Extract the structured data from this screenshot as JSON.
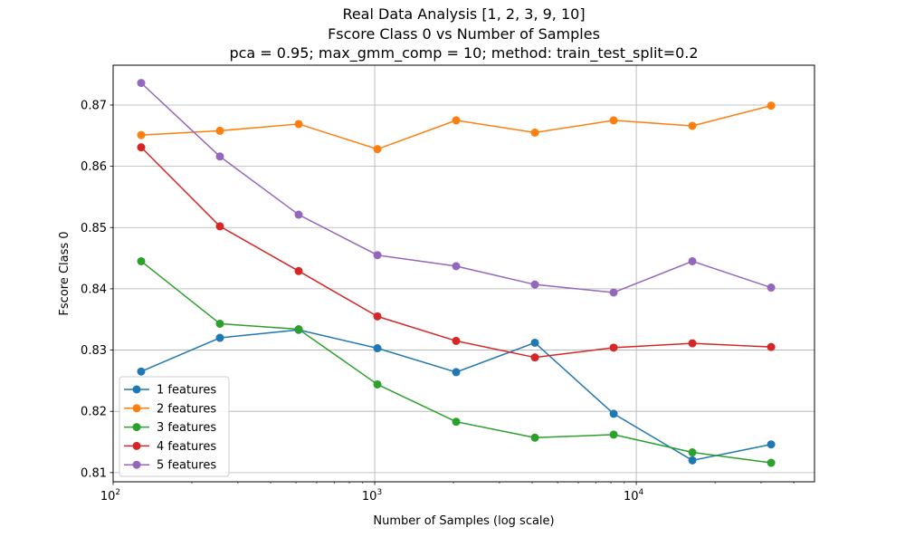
{
  "chart_data": {
    "type": "line",
    "title": [
      "Real Data Analysis [1, 2, 3, 9, 10]",
      "Fscore Class 0 vs Number of Samples",
      "pca = 0.95; max_gmm_comp = 10; method: train_test_split=0.2"
    ],
    "xlabel": "Number of Samples (log scale)",
    "ylabel": "Fscore Class 0",
    "xscale": "log",
    "xlim": [
      100,
      48000
    ],
    "ylim": [
      0.8085,
      0.8765
    ],
    "x_ticks": [
      {
        "value": 100,
        "base": "10",
        "exp": "2"
      },
      {
        "value": 1000,
        "base": "10",
        "exp": "3"
      },
      {
        "value": 10000,
        "base": "10",
        "exp": "4"
      }
    ],
    "y_ticks": [
      {
        "value": 0.81,
        "label": "0.81"
      },
      {
        "value": 0.82,
        "label": "0.82"
      },
      {
        "value": 0.83,
        "label": "0.83"
      },
      {
        "value": 0.84,
        "label": "0.84"
      },
      {
        "value": 0.85,
        "label": "0.85"
      },
      {
        "value": 0.86,
        "label": "0.86"
      },
      {
        "value": 0.87,
        "label": "0.87"
      }
    ],
    "grid": true,
    "legend_position": "lower-left",
    "x": [
      128,
      256,
      512,
      1024,
      2048,
      4096,
      8192,
      16384,
      32768
    ],
    "series": [
      {
        "name": "1 features",
        "color": "#1f77b4",
        "values": [
          0.8265,
          0.832,
          0.8333,
          0.8303,
          0.8264,
          0.8312,
          0.8196,
          0.812,
          0.8146
        ]
      },
      {
        "name": "2 features",
        "color": "#ff7f0e",
        "values": [
          0.8651,
          0.8658,
          0.8669,
          0.8628,
          0.8675,
          0.8655,
          0.8675,
          0.8666,
          0.8699
        ]
      },
      {
        "name": "3 features",
        "color": "#2ca02c",
        "values": [
          0.8445,
          0.8343,
          0.8334,
          0.8244,
          0.8183,
          0.8157,
          0.8162,
          0.8133,
          0.8116
        ]
      },
      {
        "name": "4 features",
        "color": "#d62728",
        "values": [
          0.8631,
          0.8502,
          0.8429,
          0.8355,
          0.8315,
          0.8288,
          0.8304,
          0.8311,
          0.8305
        ]
      },
      {
        "name": "5 features",
        "color": "#9467bd",
        "values": [
          0.8736,
          0.8616,
          0.8521,
          0.8455,
          0.8437,
          0.8407,
          0.8394,
          0.8445,
          0.8402
        ]
      }
    ]
  }
}
